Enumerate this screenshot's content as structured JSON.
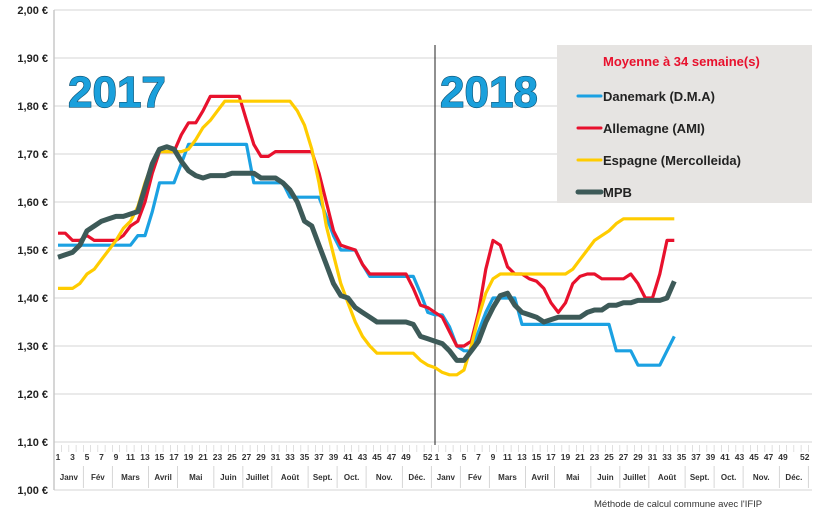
{
  "chart_data": {
    "type": "line",
    "title": "",
    "xlabel": "",
    "ylabel": "",
    "ylim": [
      1.0,
      2.0
    ],
    "y_ticks": [
      "2,00 €",
      "1,90 €",
      "1,80 €",
      "1,70 €",
      "1,60 €",
      "1,50 €",
      "1,40 €",
      "1,30 €",
      "1,20 €",
      "1,10 €",
      "1,00 €"
    ],
    "grid": true,
    "legend_position": "top-right",
    "legend_title": "Moyenne à  34 semaine(s)",
    "legend_title_color": "#e8112d",
    "year_labels": [
      "2017",
      "2018"
    ],
    "years": [
      {
        "year": "2017",
        "week_ticks": [
          "1",
          "3",
          "5",
          "7",
          "9",
          "11",
          "13",
          "15",
          "17",
          "19",
          "21",
          "23",
          "25",
          "27",
          "29",
          "31",
          "33",
          "35",
          "37",
          "39",
          "41",
          "43",
          "45",
          "47",
          "49",
          "52"
        ]
      },
      {
        "year": "2018",
        "week_ticks": [
          "1",
          "3",
          "5",
          "7",
          "9",
          "11",
          "13",
          "15",
          "17",
          "19",
          "21",
          "23",
          "25",
          "27",
          "29",
          "31",
          "33",
          "35",
          "37",
          "39",
          "41",
          "43",
          "45",
          "47",
          "49",
          "52"
        ]
      }
    ],
    "months": [
      {
        "label": "Janv",
        "from": 1,
        "to": 4
      },
      {
        "label": "Fév",
        "from": 5,
        "to": 8
      },
      {
        "label": "Mars",
        "from": 9,
        "to": 13
      },
      {
        "label": "Avril",
        "from": 14,
        "to": 17
      },
      {
        "label": "Mai",
        "from": 18,
        "to": 22
      },
      {
        "label": "Juin",
        "from": 23,
        "to": 26
      },
      {
        "label": "Juillet",
        "from": 27,
        "to": 30
      },
      {
        "label": "Août",
        "from": 31,
        "to": 35
      },
      {
        "label": "Sept.",
        "from": 36,
        "to": 39
      },
      {
        "label": "Oct.",
        "from": 40,
        "to": 43
      },
      {
        "label": "Nov.",
        "from": 44,
        "to": 48
      },
      {
        "label": "Déc.",
        "from": 49,
        "to": 52
      }
    ],
    "x_note": "2017 weeks 1–52 followed by 2018 weeks 1–34",
    "series": [
      {
        "name": "Danemark (D.M.A)",
        "color": "#1ba1e2",
        "values": [
          1.51,
          1.51,
          1.51,
          1.51,
          1.51,
          1.51,
          1.51,
          1.51,
          1.51,
          1.51,
          1.51,
          1.53,
          1.53,
          1.58,
          1.64,
          1.64,
          1.64,
          1.68,
          1.72,
          1.72,
          1.72,
          1.72,
          1.72,
          1.72,
          1.72,
          1.72,
          1.72,
          1.64,
          1.64,
          1.64,
          1.64,
          1.64,
          1.61,
          1.61,
          1.61,
          1.61,
          1.61,
          1.57,
          1.53,
          1.5,
          1.5,
          1.5,
          1.47,
          1.445,
          1.445,
          1.445,
          1.445,
          1.445,
          1.445,
          1.445,
          1.41,
          1.37,
          1.365,
          1.365,
          1.34,
          1.3,
          1.29,
          1.29,
          1.33,
          1.37,
          1.4,
          1.4,
          1.4,
          1.4,
          1.345,
          1.345,
          1.345,
          1.345,
          1.345,
          1.345,
          1.345,
          1.345,
          1.345,
          1.345,
          1.345,
          1.345,
          1.345,
          1.29,
          1.29,
          1.29,
          1.26,
          1.26,
          1.26,
          1.26,
          1.29,
          1.32
        ]
      },
      {
        "name": "Allemagne (AMI)",
        "color": "#e8112d",
        "values": [
          1.535,
          1.535,
          1.52,
          1.52,
          1.53,
          1.52,
          1.52,
          1.52,
          1.52,
          1.53,
          1.55,
          1.56,
          1.6,
          1.66,
          1.705,
          1.705,
          1.705,
          1.74,
          1.765,
          1.765,
          1.79,
          1.82,
          1.82,
          1.82,
          1.82,
          1.82,
          1.77,
          1.72,
          1.695,
          1.695,
          1.705,
          1.705,
          1.705,
          1.705,
          1.705,
          1.705,
          1.66,
          1.6,
          1.54,
          1.51,
          1.505,
          1.5,
          1.47,
          1.45,
          1.45,
          1.45,
          1.45,
          1.45,
          1.45,
          1.42,
          1.385,
          1.38,
          1.37,
          1.36,
          1.33,
          1.3,
          1.3,
          1.31,
          1.37,
          1.46,
          1.52,
          1.51,
          1.465,
          1.45,
          1.45,
          1.44,
          1.435,
          1.42,
          1.39,
          1.37,
          1.39,
          1.43,
          1.445,
          1.45,
          1.45,
          1.44,
          1.44,
          1.44,
          1.44,
          1.45,
          1.43,
          1.4,
          1.4,
          1.45,
          1.52,
          1.52
        ]
      },
      {
        "name": "Espagne (Mercolleida)",
        "color": "#ffcc00",
        "values": [
          1.42,
          1.42,
          1.42,
          1.43,
          1.45,
          1.46,
          1.48,
          1.5,
          1.52,
          1.545,
          1.56,
          1.59,
          1.64,
          1.68,
          1.705,
          1.705,
          1.705,
          1.705,
          1.71,
          1.73,
          1.755,
          1.77,
          1.79,
          1.81,
          1.81,
          1.81,
          1.81,
          1.81,
          1.81,
          1.81,
          1.81,
          1.81,
          1.81,
          1.79,
          1.76,
          1.71,
          1.64,
          1.55,
          1.49,
          1.43,
          1.39,
          1.35,
          1.32,
          1.3,
          1.285,
          1.285,
          1.285,
          1.285,
          1.285,
          1.285,
          1.27,
          1.26,
          1.255,
          1.245,
          1.24,
          1.24,
          1.25,
          1.3,
          1.36,
          1.41,
          1.44,
          1.45,
          1.45,
          1.45,
          1.45,
          1.45,
          1.45,
          1.45,
          1.45,
          1.45,
          1.45,
          1.46,
          1.48,
          1.5,
          1.52,
          1.53,
          1.54,
          1.555,
          1.565,
          1.565,
          1.565,
          1.565,
          1.565,
          1.565,
          1.565,
          1.565
        ]
      },
      {
        "name": "MPB",
        "color": "#3d5a58",
        "values": [
          1.485,
          1.49,
          1.495,
          1.51,
          1.54,
          1.55,
          1.56,
          1.565,
          1.57,
          1.57,
          1.575,
          1.58,
          1.63,
          1.68,
          1.71,
          1.715,
          1.71,
          1.685,
          1.665,
          1.655,
          1.65,
          1.655,
          1.655,
          1.655,
          1.66,
          1.66,
          1.66,
          1.66,
          1.65,
          1.65,
          1.65,
          1.64,
          1.625,
          1.6,
          1.56,
          1.55,
          1.51,
          1.47,
          1.43,
          1.405,
          1.4,
          1.38,
          1.37,
          1.36,
          1.35,
          1.35,
          1.35,
          1.35,
          1.35,
          1.345,
          1.32,
          1.315,
          1.31,
          1.305,
          1.29,
          1.27,
          1.27,
          1.29,
          1.31,
          1.35,
          1.38,
          1.405,
          1.41,
          1.385,
          1.37,
          1.365,
          1.36,
          1.35,
          1.355,
          1.36,
          1.36,
          1.36,
          1.36,
          1.37,
          1.375,
          1.375,
          1.385,
          1.385,
          1.39,
          1.39,
          1.395,
          1.395,
          1.395,
          1.395,
          1.4,
          1.435
        ]
      }
    ]
  },
  "footnote": "Méthode de calcul commune avec l'IFIP"
}
